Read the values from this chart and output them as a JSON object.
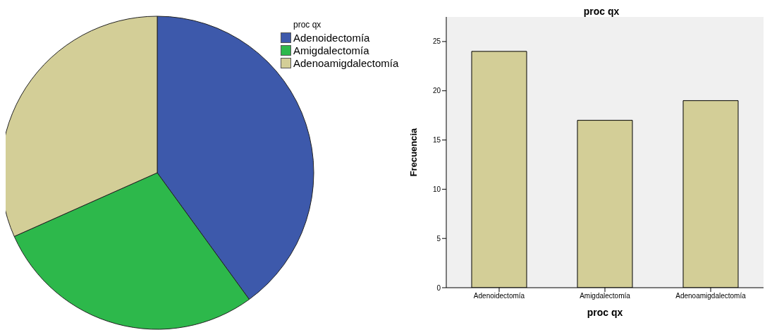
{
  "chart_data": [
    {
      "type": "pie",
      "legend_title": "proc qx",
      "categories": [
        "Adenoidectomía",
        "Amigdalectomía",
        "Adenoamigdalectomía"
      ],
      "values": [
        40,
        28.33,
        31.67
      ],
      "colors": [
        "#3d59ab",
        "#2db84b",
        "#d3ce97"
      ],
      "legend": "top right"
    },
    {
      "type": "bar",
      "title": "proc qx",
      "xlabel": "proc qx",
      "ylabel": "Frecuencia",
      "categories": [
        "Adenoidectomía",
        "Amigdalectomía",
        "Adenoamigdalectomía"
      ],
      "values": [
        24,
        17,
        19
      ],
      "color": "#d3ce97",
      "ylim": [
        0,
        27.5
      ],
      "yticks": [
        0,
        5,
        10,
        15,
        20,
        25
      ],
      "grid": false
    }
  ]
}
